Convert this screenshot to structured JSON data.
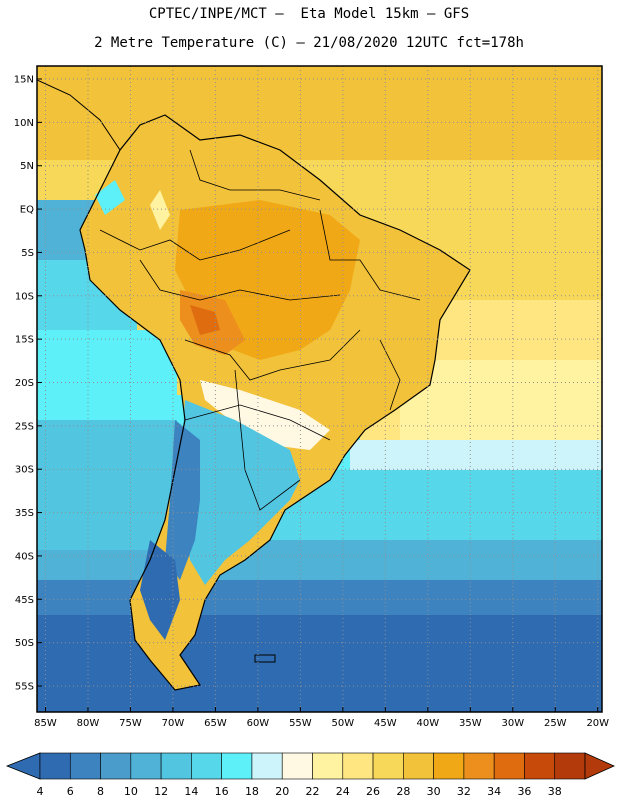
{
  "title_line1": "CPTEC/INPE/MCT –  Eta Model 15km – GFS",
  "title_line2": "2 Metre Temperature (C) – 21/08/2020 12UTC fct=178h",
  "lat_labels": [
    "15N",
    "10N",
    "5N",
    "EQ",
    "5S",
    "10S",
    "15S",
    "20S",
    "25S",
    "30S",
    "35S",
    "40S",
    "45S",
    "50S",
    "55S"
  ],
  "lon_labels": [
    "85W",
    "80W",
    "75W",
    "70W",
    "65W",
    "60W",
    "55W",
    "50W",
    "45W",
    "40W",
    "35W",
    "30W",
    "25W",
    "20W"
  ],
  "map_extent": {
    "lon": [
      -86,
      -19.5
    ],
    "lat": [
      -58,
      16.5
    ]
  },
  "colorbar": {
    "labels": [
      "4",
      "6",
      "8",
      "10",
      "12",
      "14",
      "16",
      "18",
      "20",
      "22",
      "24",
      "26",
      "28",
      "30",
      "32",
      "34",
      "36",
      "38"
    ],
    "colors": [
      "#2f6bb0",
      "#3c83bf",
      "#4a9ccb",
      "#4fb2d6",
      "#52c5e0",
      "#56d7ea",
      "#5ef0f8",
      "#cdf4fb",
      "#fff8e3",
      "#fff3a1",
      "#ffe680",
      "#f8d858",
      "#f2c23a",
      "#f0a817",
      "#ec8f1c",
      "#df6d0f",
      "#c84a0b",
      "#b33a0a"
    ]
  }
}
